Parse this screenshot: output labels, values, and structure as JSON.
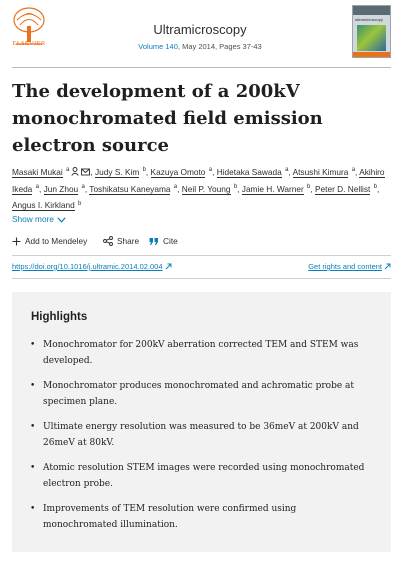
{
  "header": {
    "publisher": "ELSEVIER",
    "journal_title": "Ultramicroscopy",
    "volume_link": "Volume 140",
    "meta_rest": ", May 2014, Pages 37-43",
    "cover_name": "ultramicroscopy"
  },
  "article": {
    "title": "The development of a 200kV monochromated field emission electron source"
  },
  "authors": [
    {
      "name": "Masaki Mukai",
      "aff": "a",
      "icons": [
        "person-icon",
        "mail-icon"
      ]
    },
    {
      "name": "Judy S. Kim",
      "aff": "b"
    },
    {
      "name": "Kazuya Omoto",
      "aff": "a"
    },
    {
      "name": "Hidetaka Sawada",
      "aff": "a"
    },
    {
      "name": "Atsushi Kimura",
      "aff": "a"
    },
    {
      "name": "Akihiro Ikeda",
      "aff": "a"
    },
    {
      "name": "Jun Zhou",
      "aff": "a"
    },
    {
      "name": "Toshikatsu Kaneyama",
      "aff": "a"
    },
    {
      "name": "Neil P. Young",
      "aff": "b"
    },
    {
      "name": "Jamie H. Warner",
      "aff": "b"
    },
    {
      "name": "Peter D. Nellist",
      "aff": "b"
    },
    {
      "name": "Angus I. Kirkland",
      "aff": "b"
    }
  ],
  "show_more": "Show more",
  "actions": {
    "mendeley": "Add to Mendeley",
    "share": "Share",
    "cite": "Cite"
  },
  "doi": "https://doi.org/10.1016/j.ultramic.2014.02.004",
  "rights": "Get rights and content",
  "highlights": {
    "title": "Highlights",
    "items": [
      "Monochromator for 200kV aberration corrected TEM and STEM was developed.",
      "Monochromator produces monochromated and achromatic probe at specimen plane.",
      "Ultimate energy resolution was measured to be 36meV at 200kV and 26meV at 80kV.",
      "Atomic resolution STEM images were recorded using monochromated electron probe.",
      "Improvements of TEM resolution were confirmed using monochromated illumination."
    ]
  },
  "colors": {
    "link": "#0c7dbb",
    "publisher_orange": "#e9711c",
    "highlights_bg": "#f2f2f2"
  }
}
